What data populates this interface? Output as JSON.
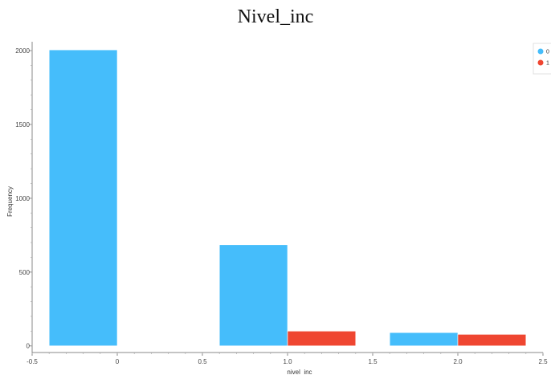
{
  "chart_data": {
    "type": "bar",
    "title": "Nivel_inc",
    "xlabel": "nivel_inc",
    "ylabel": "Frequency",
    "xlim": [
      -0.5,
      2.5
    ],
    "ylim": [
      -45,
      2060
    ],
    "x_ticks": [
      -0.5,
      0,
      0.5,
      1.0,
      1.5,
      2.0,
      2.5
    ],
    "x_tick_labels": [
      "-0.5",
      "0",
      "0.5",
      "1.0",
      "1.5",
      "2.0",
      "2.5"
    ],
    "y_ticks": [
      0,
      500,
      1000,
      1500,
      2000
    ],
    "y_tick_labels": [
      "0",
      "500",
      "1000",
      "1500",
      "2000"
    ],
    "bar_width": 0.4,
    "series": [
      {
        "name": "0",
        "color": "#45bdfb",
        "bars": [
          {
            "x": -0.2,
            "value": 2005
          },
          {
            "x": 0.8,
            "value": 685
          },
          {
            "x": 1.8,
            "value": 90
          }
        ]
      },
      {
        "name": "1",
        "color": "#ef4631",
        "bars": [
          {
            "x": 0.2,
            "value": 0
          },
          {
            "x": 1.2,
            "value": 100
          },
          {
            "x": 2.2,
            "value": 78
          }
        ]
      }
    ],
    "legend_position": "top-right",
    "grid": false
  }
}
